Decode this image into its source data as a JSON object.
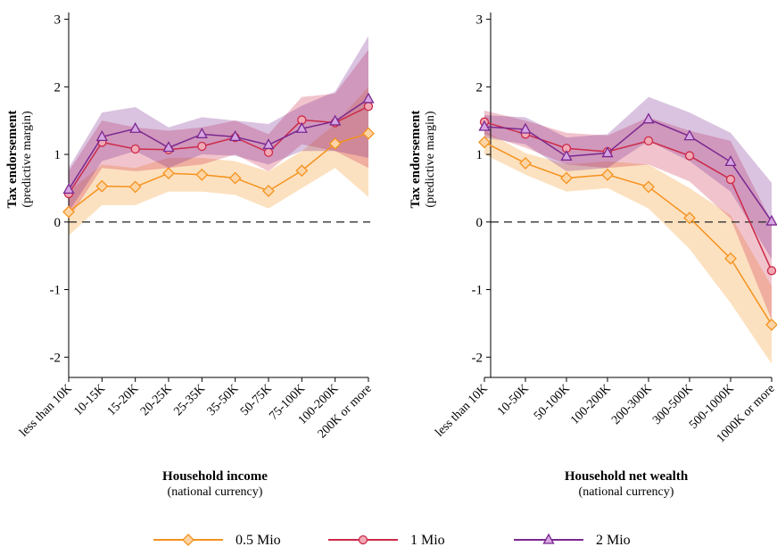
{
  "chart_data": [
    {
      "type": "line",
      "title": "",
      "xlabel": "Household income",
      "xlabel_sub": "(national currency)",
      "ylabel": "Tax endorsement",
      "ylabel_sub": "(predictive margin)",
      "ylim": [
        -2.3,
        3.1
      ],
      "yticks": [
        -2,
        -1,
        0,
        1,
        2,
        3
      ],
      "grid": false,
      "reference_line": 0,
      "categories": [
        "less than 10K",
        "10-15K",
        "15-20K",
        "20-25K",
        "25-35K",
        "35-50K",
        "50-75K",
        "75-100K",
        "100-200K",
        "200K or more"
      ],
      "series": [
        {
          "name": "0.5 Mio",
          "color": "#f5921e",
          "marker": "diamond",
          "values": [
            0.15,
            0.53,
            0.52,
            0.72,
            0.7,
            0.65,
            0.46,
            0.76,
            1.16,
            1.31
          ],
          "lower": [
            -0.2,
            0.25,
            0.25,
            0.45,
            0.45,
            0.4,
            0.2,
            0.5,
            0.8,
            0.37
          ],
          "upper": [
            0.45,
            0.85,
            0.8,
            0.95,
            0.95,
            0.9,
            0.75,
            1.05,
            1.45,
            2.0
          ]
        },
        {
          "name": "1 Mio",
          "color": "#cc2a4a",
          "marker": "circle",
          "values": [
            0.42,
            1.18,
            1.08,
            1.07,
            1.12,
            1.25,
            1.03,
            1.51,
            1.47,
            1.71
          ],
          "lower": [
            0.05,
            0.8,
            0.75,
            0.8,
            0.85,
            1.0,
            0.75,
            1.15,
            1.05,
            0.8
          ],
          "upper": [
            0.75,
            1.5,
            1.4,
            1.35,
            1.4,
            1.5,
            1.3,
            1.85,
            1.9,
            2.55
          ]
        },
        {
          "name": "2 Mio",
          "color": "#7b2890",
          "marker": "triangle",
          "values": [
            0.48,
            1.26,
            1.38,
            1.1,
            1.3,
            1.26,
            1.14,
            1.38,
            1.49,
            1.82
          ],
          "lower": [
            0.15,
            0.9,
            1.05,
            0.8,
            1.0,
            0.98,
            0.85,
            1.05,
            1.05,
            0.95
          ],
          "upper": [
            0.8,
            1.62,
            1.7,
            1.4,
            1.55,
            1.5,
            1.45,
            1.72,
            1.93,
            2.75
          ]
        }
      ]
    },
    {
      "type": "line",
      "title": "",
      "xlabel": "Household net wealth",
      "xlabel_sub": "(national currency)",
      "ylabel": "Tax endorsement",
      "ylabel_sub": "(predictive margin)",
      "ylim": [
        -2.3,
        3.1
      ],
      "yticks": [
        -2,
        -1,
        0,
        1,
        2,
        3
      ],
      "grid": false,
      "reference_line": 0,
      "categories": [
        "less than 10K",
        "10-50K",
        "50-100K",
        "100-200K",
        "200-300K",
        "300-500K",
        "500-1000K",
        "1000K or more"
      ],
      "series": [
        {
          "name": "0.5 Mio",
          "color": "#f5921e",
          "marker": "diamond",
          "values": [
            1.18,
            0.87,
            0.65,
            0.7,
            0.52,
            0.06,
            -0.54,
            -1.52
          ],
          "lower": [
            1.0,
            0.7,
            0.45,
            0.5,
            0.2,
            -0.4,
            -1.2,
            -2.1
          ],
          "upper": [
            1.35,
            1.02,
            0.85,
            0.9,
            0.85,
            0.5,
            0.1,
            -0.95
          ]
        },
        {
          "name": "1 Mio",
          "color": "#cc2a4a",
          "marker": "circle",
          "values": [
            1.48,
            1.3,
            1.09,
            1.04,
            1.2,
            0.98,
            0.63,
            -0.72
          ],
          "lower": [
            1.3,
            1.1,
            0.85,
            0.8,
            0.85,
            0.6,
            0.05,
            -1.45
          ],
          "upper": [
            1.65,
            1.5,
            1.32,
            1.28,
            1.55,
            1.35,
            1.2,
            0.0
          ]
        },
        {
          "name": "2 Mio",
          "color": "#7b2890",
          "marker": "triangle",
          "values": [
            1.41,
            1.37,
            0.97,
            1.02,
            1.52,
            1.27,
            0.89,
            0.01
          ],
          "lower": [
            1.25,
            1.15,
            0.75,
            0.8,
            1.2,
            0.9,
            0.45,
            -0.55
          ],
          "upper": [
            1.58,
            1.55,
            1.25,
            1.3,
            1.85,
            1.62,
            1.32,
            0.58
          ]
        }
      ]
    }
  ],
  "legend": {
    "placement": "bottom-center",
    "items": [
      "0.5 Mio",
      "1 Mio",
      "2 Mio"
    ]
  }
}
